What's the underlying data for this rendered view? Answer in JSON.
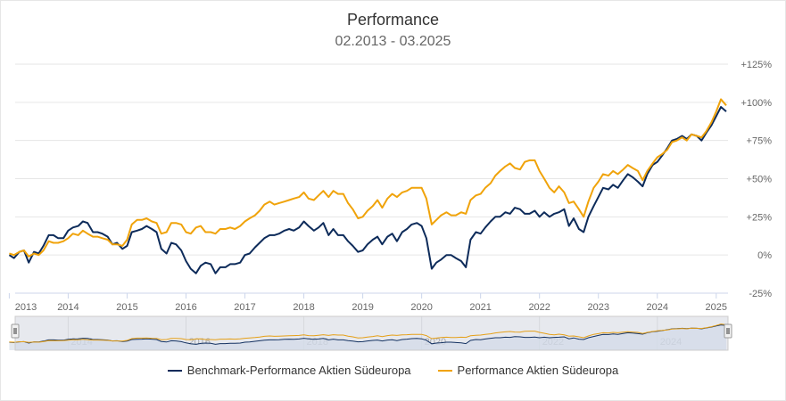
{
  "chart_data": {
    "type": "line",
    "title": "Performance",
    "subtitle": "02.2013 - 03.2025",
    "xlabel": "",
    "ylabel": "",
    "y_ticks": [
      "+125%",
      "+100%",
      "+75%",
      "+50%",
      "+25%",
      "0%",
      "-25%"
    ],
    "y_tick_values": [
      125,
      100,
      75,
      50,
      25,
      0,
      -25
    ],
    "ylim": [
      -25,
      125
    ],
    "xlim": [
      2013.1,
      2025.2
    ],
    "x_ticks": [
      "2013",
      "2014",
      "2015",
      "2016",
      "2017",
      "2018",
      "2019",
      "2020",
      "2021",
      "2022",
      "2023",
      "2024",
      "2025"
    ],
    "navigator_ticks": [
      "2014",
      "2016",
      "2018",
      "2020",
      "2022",
      "2024"
    ],
    "grid": true,
    "legend_position": "bottom-center",
    "series": [
      {
        "name": "Benchmark-Performance Aktien Südeuropa",
        "color": "#0d2b5a",
        "points": [
          [
            2013.0,
            0
          ],
          [
            2013.08,
            -2
          ],
          [
            2013.17,
            2
          ],
          [
            2013.25,
            3
          ],
          [
            2013.33,
            -5
          ],
          [
            2013.42,
            2
          ],
          [
            2013.5,
            1
          ],
          [
            2013.58,
            6
          ],
          [
            2013.67,
            13
          ],
          [
            2013.75,
            13
          ],
          [
            2013.83,
            11
          ],
          [
            2013.92,
            11
          ],
          [
            2014.0,
            16
          ],
          [
            2014.08,
            18
          ],
          [
            2014.17,
            19
          ],
          [
            2014.25,
            22
          ],
          [
            2014.33,
            21
          ],
          [
            2014.42,
            15
          ],
          [
            2014.5,
            15
          ],
          [
            2014.58,
            14
          ],
          [
            2014.67,
            12
          ],
          [
            2014.75,
            7
          ],
          [
            2014.83,
            8
          ],
          [
            2014.92,
            4
          ],
          [
            2015.0,
            6
          ],
          [
            2015.08,
            15
          ],
          [
            2015.17,
            16
          ],
          [
            2015.25,
            17
          ],
          [
            2015.33,
            19
          ],
          [
            2015.42,
            17
          ],
          [
            2015.5,
            15
          ],
          [
            2015.58,
            4
          ],
          [
            2015.67,
            1
          ],
          [
            2015.75,
            8
          ],
          [
            2015.83,
            7
          ],
          [
            2015.92,
            3
          ],
          [
            2016.0,
            -4
          ],
          [
            2016.08,
            -9
          ],
          [
            2016.17,
            -12
          ],
          [
            2016.25,
            -7
          ],
          [
            2016.33,
            -5
          ],
          [
            2016.42,
            -6
          ],
          [
            2016.5,
            -12
          ],
          [
            2016.58,
            -8
          ],
          [
            2016.67,
            -8
          ],
          [
            2016.75,
            -6
          ],
          [
            2016.83,
            -6
          ],
          [
            2016.92,
            -5
          ],
          [
            2017.0,
            0
          ],
          [
            2017.08,
            1
          ],
          [
            2017.17,
            5
          ],
          [
            2017.25,
            8
          ],
          [
            2017.33,
            11
          ],
          [
            2017.42,
            13
          ],
          [
            2017.5,
            13
          ],
          [
            2017.58,
            14
          ],
          [
            2017.67,
            16
          ],
          [
            2017.75,
            17
          ],
          [
            2017.83,
            16
          ],
          [
            2017.92,
            18
          ],
          [
            2018.0,
            22
          ],
          [
            2018.08,
            19
          ],
          [
            2018.17,
            16
          ],
          [
            2018.25,
            18
          ],
          [
            2018.33,
            21
          ],
          [
            2018.42,
            13
          ],
          [
            2018.5,
            17
          ],
          [
            2018.58,
            13
          ],
          [
            2018.67,
            13
          ],
          [
            2018.75,
            9
          ],
          [
            2018.83,
            6
          ],
          [
            2018.92,
            2
          ],
          [
            2019.0,
            3
          ],
          [
            2019.08,
            7
          ],
          [
            2019.17,
            10
          ],
          [
            2019.25,
            12
          ],
          [
            2019.33,
            7
          ],
          [
            2019.42,
            12
          ],
          [
            2019.5,
            14
          ],
          [
            2019.58,
            9
          ],
          [
            2019.67,
            15
          ],
          [
            2019.75,
            17
          ],
          [
            2019.83,
            20
          ],
          [
            2019.92,
            21
          ],
          [
            2020.0,
            19
          ],
          [
            2020.08,
            11
          ],
          [
            2020.17,
            -9
          ],
          [
            2020.25,
            -5
          ],
          [
            2020.33,
            -3
          ],
          [
            2020.42,
            0
          ],
          [
            2020.5,
            0
          ],
          [
            2020.58,
            -2
          ],
          [
            2020.67,
            -4
          ],
          [
            2020.75,
            -8
          ],
          [
            2020.83,
            10
          ],
          [
            2020.92,
            15
          ],
          [
            2021.0,
            14
          ],
          [
            2021.08,
            18
          ],
          [
            2021.17,
            22
          ],
          [
            2021.25,
            25
          ],
          [
            2021.33,
            25
          ],
          [
            2021.42,
            28
          ],
          [
            2021.5,
            27
          ],
          [
            2021.58,
            31
          ],
          [
            2021.67,
            30
          ],
          [
            2021.75,
            27
          ],
          [
            2021.83,
            27
          ],
          [
            2021.92,
            29
          ],
          [
            2022.0,
            25
          ],
          [
            2022.08,
            28
          ],
          [
            2022.17,
            25
          ],
          [
            2022.25,
            27
          ],
          [
            2022.33,
            28
          ],
          [
            2022.42,
            30
          ],
          [
            2022.5,
            19
          ],
          [
            2022.58,
            24
          ],
          [
            2022.67,
            17
          ],
          [
            2022.75,
            15
          ],
          [
            2022.83,
            25
          ],
          [
            2022.92,
            32
          ],
          [
            2023.0,
            38
          ],
          [
            2023.08,
            44
          ],
          [
            2023.17,
            43
          ],
          [
            2023.25,
            46
          ],
          [
            2023.33,
            44
          ],
          [
            2023.42,
            49
          ],
          [
            2023.5,
            53
          ],
          [
            2023.58,
            51
          ],
          [
            2023.67,
            48
          ],
          [
            2023.75,
            45
          ],
          [
            2023.83,
            53
          ],
          [
            2023.92,
            59
          ],
          [
            2024.0,
            61
          ],
          [
            2024.08,
            65
          ],
          [
            2024.17,
            70
          ],
          [
            2024.25,
            75
          ],
          [
            2024.33,
            76
          ],
          [
            2024.42,
            78
          ],
          [
            2024.5,
            76
          ],
          [
            2024.58,
            79
          ],
          [
            2024.67,
            78
          ],
          [
            2024.75,
            75
          ],
          [
            2024.83,
            80
          ],
          [
            2024.92,
            85
          ],
          [
            2025.0,
            91
          ],
          [
            2025.08,
            97
          ],
          [
            2025.17,
            94
          ]
        ]
      },
      {
        "name": "Performance Aktien Südeuropa",
        "color": "#f0a30a",
        "points": [
          [
            2013.0,
            1
          ],
          [
            2013.08,
            0
          ],
          [
            2013.17,
            2
          ],
          [
            2013.25,
            3
          ],
          [
            2013.33,
            -1
          ],
          [
            2013.42,
            1
          ],
          [
            2013.5,
            0
          ],
          [
            2013.58,
            3
          ],
          [
            2013.67,
            9
          ],
          [
            2013.75,
            8
          ],
          [
            2013.83,
            8
          ],
          [
            2013.92,
            9
          ],
          [
            2014.0,
            11
          ],
          [
            2014.08,
            14
          ],
          [
            2014.17,
            13
          ],
          [
            2014.25,
            16
          ],
          [
            2014.33,
            14
          ],
          [
            2014.42,
            12
          ],
          [
            2014.5,
            12
          ],
          [
            2014.58,
            11
          ],
          [
            2014.67,
            10
          ],
          [
            2014.75,
            7
          ],
          [
            2014.83,
            7
          ],
          [
            2014.92,
            6
          ],
          [
            2015.0,
            10
          ],
          [
            2015.08,
            20
          ],
          [
            2015.17,
            23
          ],
          [
            2015.25,
            23
          ],
          [
            2015.33,
            24
          ],
          [
            2015.42,
            22
          ],
          [
            2015.5,
            21
          ],
          [
            2015.58,
            14
          ],
          [
            2015.67,
            15
          ],
          [
            2015.75,
            21
          ],
          [
            2015.83,
            21
          ],
          [
            2015.92,
            20
          ],
          [
            2016.0,
            15
          ],
          [
            2016.08,
            14
          ],
          [
            2016.17,
            18
          ],
          [
            2016.25,
            19
          ],
          [
            2016.33,
            15
          ],
          [
            2016.42,
            15
          ],
          [
            2016.5,
            14
          ],
          [
            2016.58,
            17
          ],
          [
            2016.67,
            17
          ],
          [
            2016.75,
            18
          ],
          [
            2016.83,
            17
          ],
          [
            2016.92,
            19
          ],
          [
            2017.0,
            22
          ],
          [
            2017.08,
            24
          ],
          [
            2017.17,
            26
          ],
          [
            2017.25,
            29
          ],
          [
            2017.33,
            33
          ],
          [
            2017.42,
            35
          ],
          [
            2017.5,
            33
          ],
          [
            2017.58,
            34
          ],
          [
            2017.67,
            35
          ],
          [
            2017.75,
            36
          ],
          [
            2017.83,
            37
          ],
          [
            2017.92,
            38
          ],
          [
            2018.0,
            41
          ],
          [
            2018.08,
            37
          ],
          [
            2018.17,
            36
          ],
          [
            2018.25,
            39
          ],
          [
            2018.33,
            42
          ],
          [
            2018.42,
            38
          ],
          [
            2018.5,
            42
          ],
          [
            2018.58,
            40
          ],
          [
            2018.67,
            40
          ],
          [
            2018.75,
            34
          ],
          [
            2018.83,
            30
          ],
          [
            2018.92,
            24
          ],
          [
            2019.0,
            25
          ],
          [
            2019.08,
            29
          ],
          [
            2019.17,
            32
          ],
          [
            2019.25,
            36
          ],
          [
            2019.33,
            31
          ],
          [
            2019.42,
            37
          ],
          [
            2019.5,
            40
          ],
          [
            2019.58,
            38
          ],
          [
            2019.67,
            41
          ],
          [
            2019.75,
            42
          ],
          [
            2019.83,
            44
          ],
          [
            2019.92,
            44
          ],
          [
            2020.0,
            44
          ],
          [
            2020.08,
            37
          ],
          [
            2020.17,
            20
          ],
          [
            2020.25,
            23
          ],
          [
            2020.33,
            26
          ],
          [
            2020.42,
            28
          ],
          [
            2020.5,
            26
          ],
          [
            2020.58,
            26
          ],
          [
            2020.67,
            28
          ],
          [
            2020.75,
            27
          ],
          [
            2020.83,
            36
          ],
          [
            2020.92,
            39
          ],
          [
            2021.0,
            40
          ],
          [
            2021.08,
            44
          ],
          [
            2021.17,
            47
          ],
          [
            2021.25,
            52
          ],
          [
            2021.33,
            55
          ],
          [
            2021.42,
            58
          ],
          [
            2021.5,
            60
          ],
          [
            2021.58,
            57
          ],
          [
            2021.67,
            56
          ],
          [
            2021.75,
            61
          ],
          [
            2021.83,
            62
          ],
          [
            2021.92,
            62
          ],
          [
            2022.0,
            55
          ],
          [
            2022.08,
            50
          ],
          [
            2022.17,
            44
          ],
          [
            2022.25,
            41
          ],
          [
            2022.33,
            45
          ],
          [
            2022.42,
            41
          ],
          [
            2022.5,
            34
          ],
          [
            2022.58,
            35
          ],
          [
            2022.67,
            30
          ],
          [
            2022.75,
            25
          ],
          [
            2022.83,
            35
          ],
          [
            2022.92,
            44
          ],
          [
            2023.0,
            48
          ],
          [
            2023.08,
            53
          ],
          [
            2023.17,
            52
          ],
          [
            2023.25,
            55
          ],
          [
            2023.33,
            53
          ],
          [
            2023.42,
            56
          ],
          [
            2023.5,
            59
          ],
          [
            2023.58,
            57
          ],
          [
            2023.67,
            55
          ],
          [
            2023.75,
            49
          ],
          [
            2023.83,
            55
          ],
          [
            2023.92,
            60
          ],
          [
            2024.0,
            64
          ],
          [
            2024.08,
            66
          ],
          [
            2024.17,
            69
          ],
          [
            2024.25,
            74
          ],
          [
            2024.33,
            75
          ],
          [
            2024.42,
            77
          ],
          [
            2024.5,
            75
          ],
          [
            2024.58,
            79
          ],
          [
            2024.67,
            78
          ],
          [
            2024.75,
            77
          ],
          [
            2024.83,
            81
          ],
          [
            2024.92,
            87
          ],
          [
            2025.0,
            94
          ],
          [
            2025.08,
            102
          ],
          [
            2025.17,
            98
          ]
        ]
      }
    ]
  }
}
